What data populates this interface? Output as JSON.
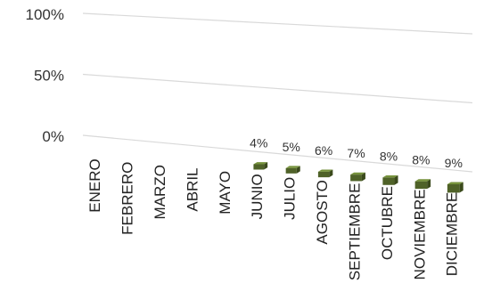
{
  "chart_data": {
    "type": "bar",
    "title": "",
    "xlabel": "",
    "ylabel": "",
    "ylim": [
      0,
      100
    ],
    "y_ticks": [
      "0%",
      "50%",
      "100%"
    ],
    "y_tick_values": [
      0,
      50,
      100
    ],
    "categories": [
      "ENERO",
      "FEBRERO",
      "MARZO",
      "ABRIL",
      "MAYO",
      "JUNIO",
      "JULIO",
      "AGOSTO",
      "SEPTIEMBRE",
      "OCTUBRE",
      "NOVIEMBRE",
      "DICIEMBRE"
    ],
    "values": [
      null,
      null,
      null,
      null,
      null,
      4,
      5,
      6,
      7,
      8,
      8,
      9
    ],
    "data_labels": [
      "",
      "",
      "",
      "",
      "",
      "4%",
      "5%",
      "6%",
      "7%",
      "8%",
      "8%",
      "9%"
    ],
    "grid": true,
    "bar_color": "#4f6228",
    "bar_top_color": "#76923c",
    "bar_side_color": "#3b4a1c",
    "gridline_color": "#d9d9d9"
  }
}
